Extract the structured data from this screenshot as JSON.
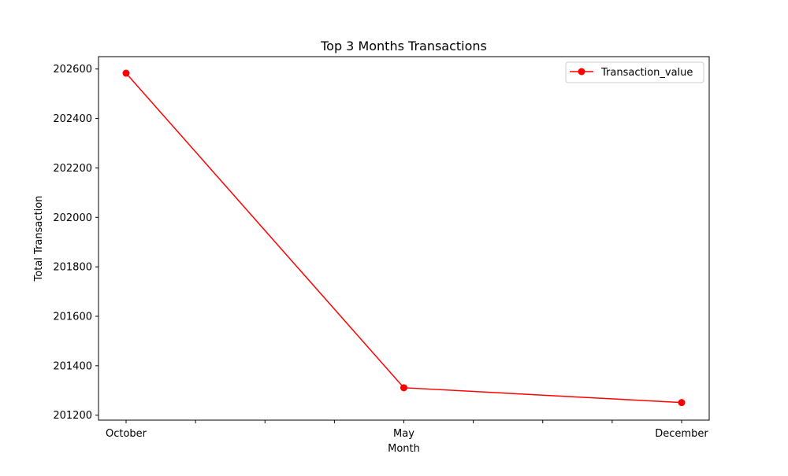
{
  "chart_data": {
    "type": "line",
    "title": "Top 3 Months Transactions",
    "xlabel": "Month",
    "ylabel": "Total Transaction",
    "categories": [
      "October",
      "May",
      "December"
    ],
    "series": [
      {
        "name": "Transaction_value",
        "color": "#ff0000",
        "marker": "circle",
        "values": [
          202583,
          201311,
          201251
        ]
      }
    ],
    "ylim": [
      201180,
      202650
    ],
    "yticks": [
      201200,
      201400,
      201600,
      201800,
      202000,
      202200,
      202400,
      202600
    ],
    "x_minor_ticks_between": 3,
    "grid": false,
    "legend_position": "top-right"
  }
}
